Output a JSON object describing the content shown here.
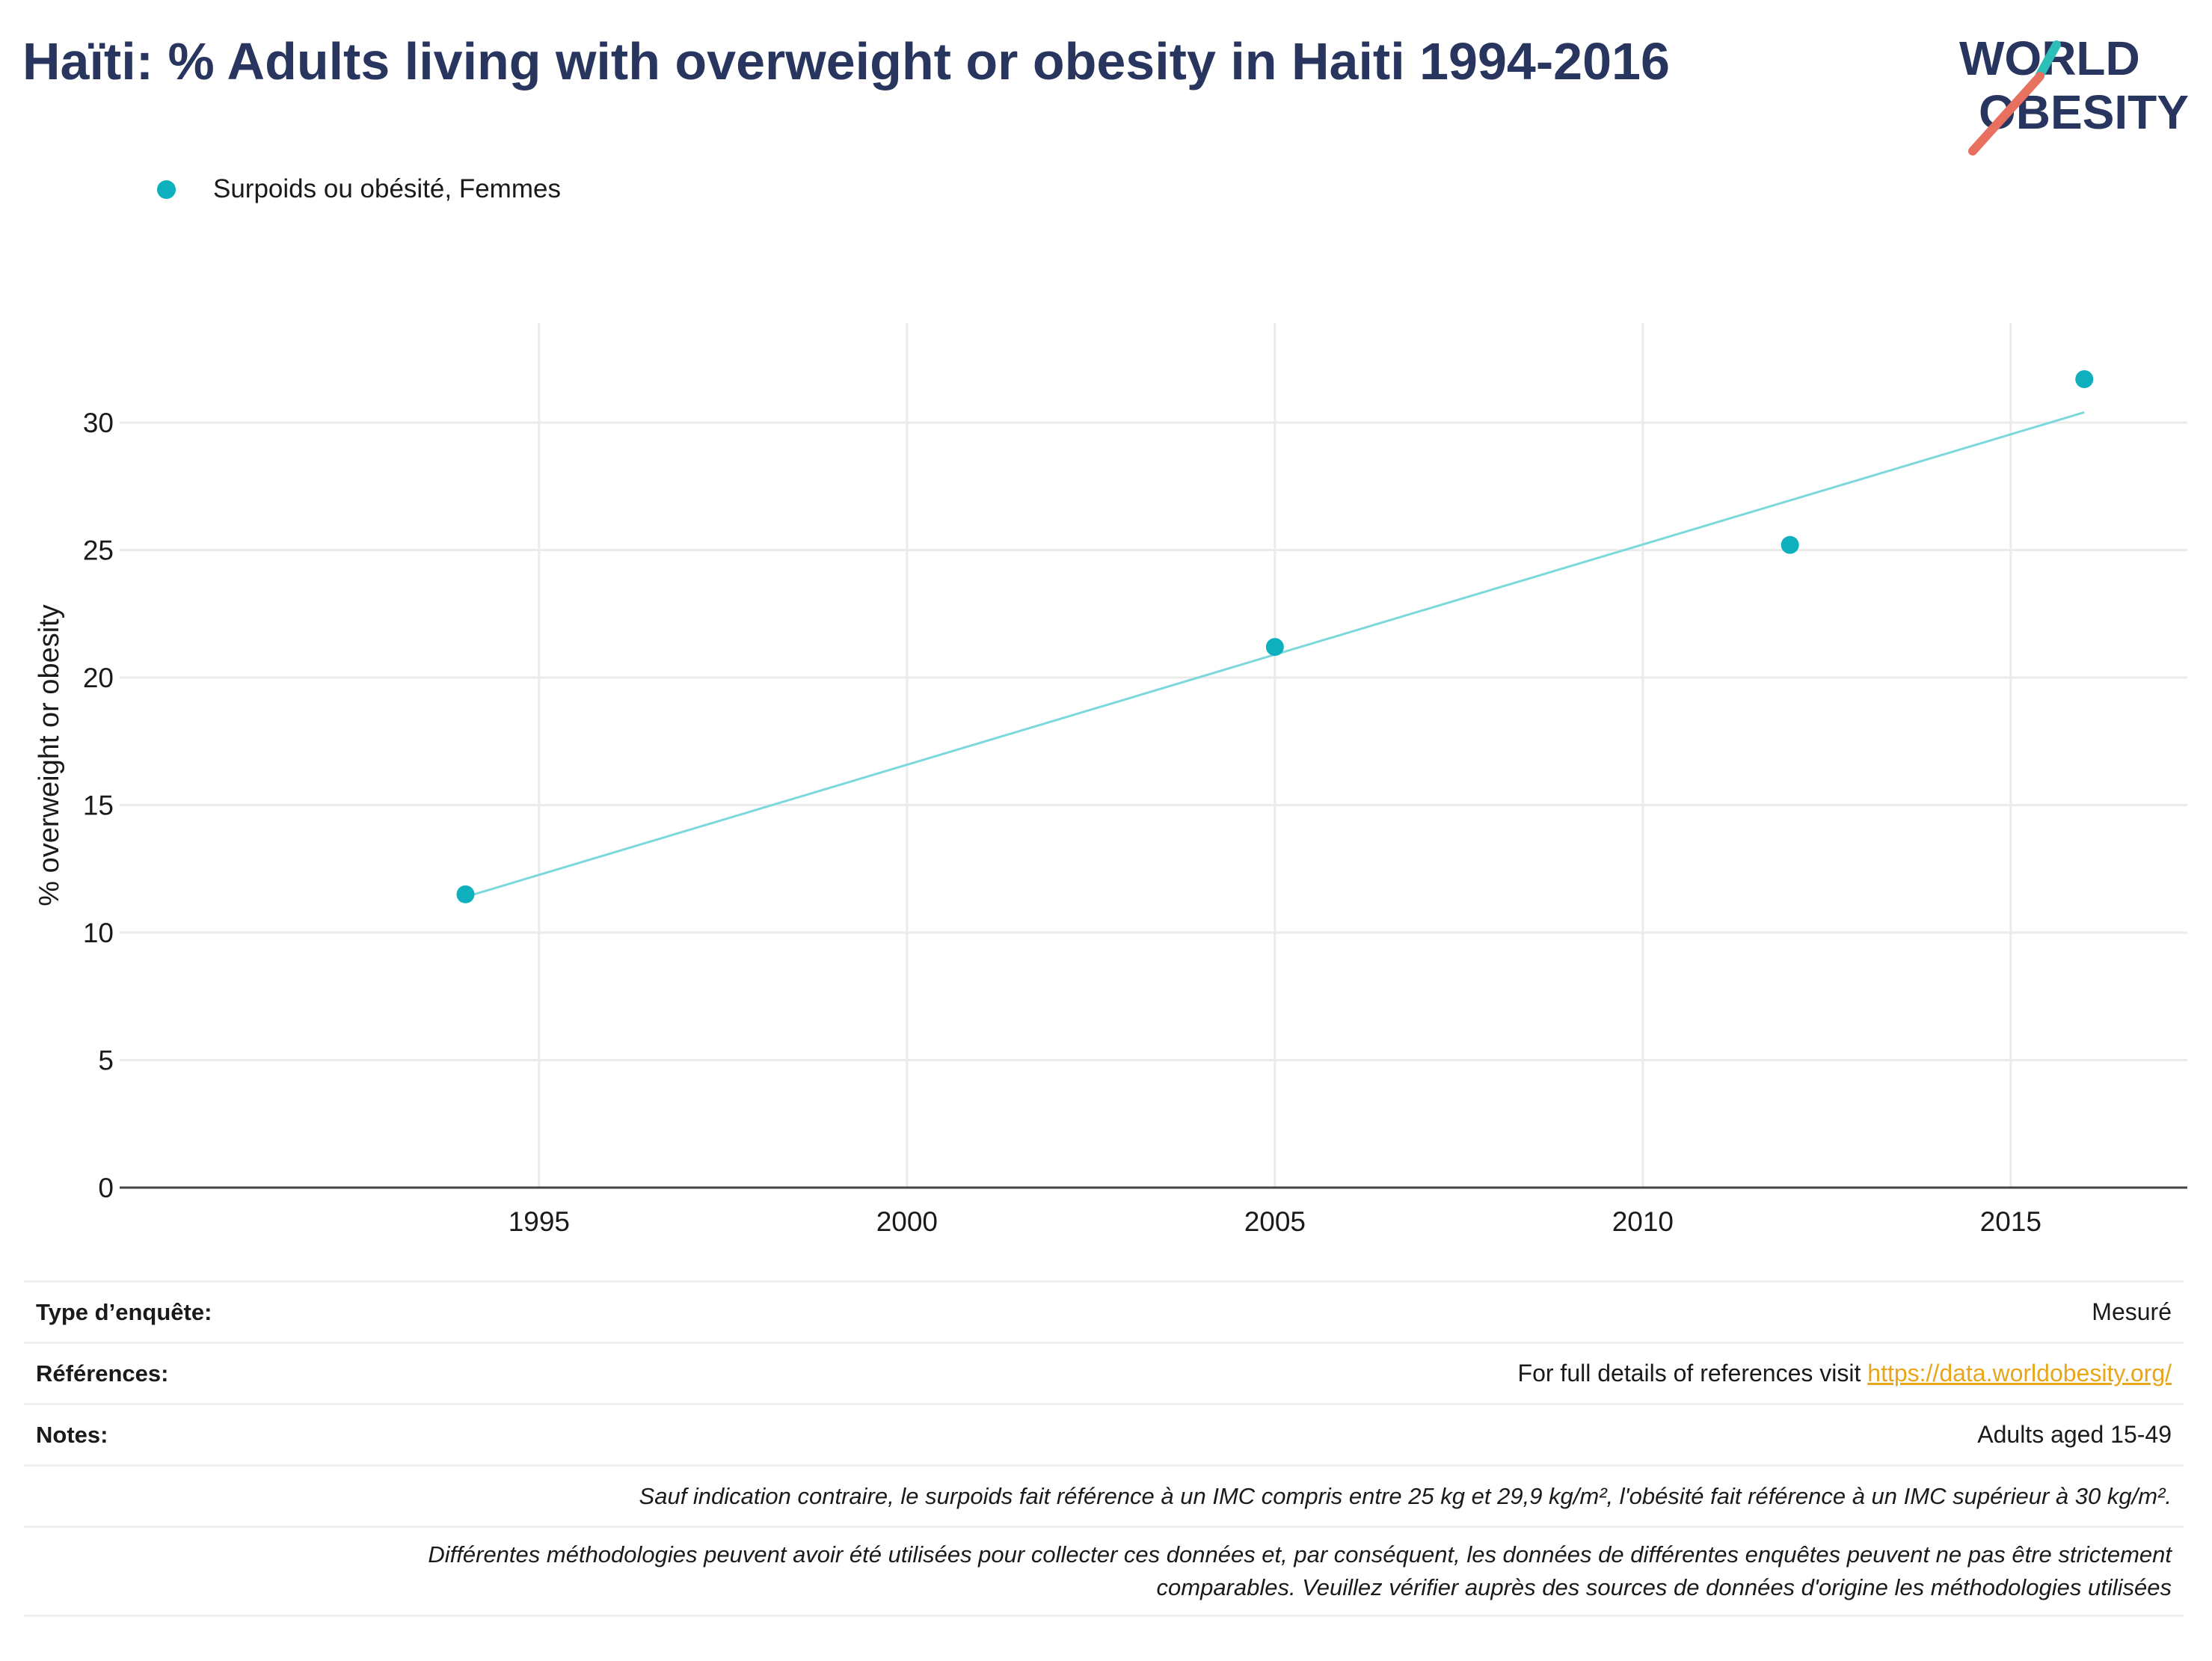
{
  "title": "Haïti: % Adults living with overweight or obesity in Haiti 1994-2016",
  "logo": {
    "line1": "WORLD",
    "line2": "OBESITY",
    "accent_teal": "#2bbfb8",
    "accent_red": "#e8705f",
    "text_color": "#28365f"
  },
  "legend": {
    "series_label": "Surpoids ou obésité, Femmes",
    "marker_color": "#0fb0bd"
  },
  "chart_data": {
    "type": "scatter",
    "ylabel": "% overweight or obesity",
    "xlabel": "",
    "x_ticks": [
      1995,
      2000,
      2005,
      2010,
      2015
    ],
    "y_ticks": [
      0,
      5,
      10,
      15,
      20,
      25,
      30
    ],
    "xlim": [
      1989.3,
      2017.4
    ],
    "ylim": [
      0,
      33.9
    ],
    "grid": true,
    "series": [
      {
        "name": "Surpoids ou obésité, Femmes",
        "color": "#0fb0bd",
        "points": [
          {
            "x": 1994,
            "y": 11.5
          },
          {
            "x": 2005,
            "y": 21.2
          },
          {
            "x": 2012,
            "y": 25.2
          },
          {
            "x": 2016,
            "y": 31.7
          }
        ]
      }
    ],
    "trendline": {
      "color": "#7dd8dd",
      "from": {
        "x": 1994,
        "y": 11.4
      },
      "to": {
        "x": 2016,
        "y": 30.4
      }
    }
  },
  "info": {
    "survey_type_label": "Type d’enquête:",
    "survey_type_value": "Mesuré",
    "references_label": "Références:",
    "references_text": "For full details of references visit ",
    "references_link": "https://data.worldobesity.org/",
    "notes_label": "Notes:",
    "notes_value": "Adults aged 15-49",
    "note_bmi": "Sauf indication contraire, le surpoids fait référence à un IMC compris entre 25 kg et 29,9 kg/m², l'obésité fait référence à un IMC supérieur à 30 kg/m².",
    "note_methods_1": "Différentes méthodologies peuvent avoir été utilisées pour collecter ces données et, par conséquent, les données de différentes enquêtes peuvent ne pas être strictement",
    "note_methods_2": "comparables. Veuillez vérifier auprès des sources de données d'origine les méthodologies utilisées"
  }
}
